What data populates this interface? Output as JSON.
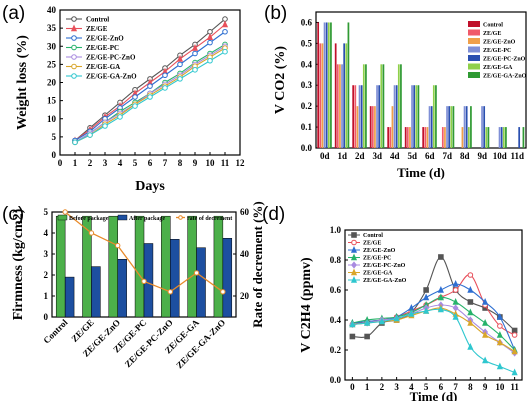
{
  "colors": {
    "control": "#555555",
    "ze_ge": "#e8505b",
    "ze_ge_zno": "#2e6fd1",
    "ze_ge_pc": "#27b36b",
    "ze_ge_pc_zno": "#a98be0",
    "ze_ge_ga": "#d9a62a",
    "ze_ge_ga_zno": "#2fc7cf",
    "b_control": "#c0102a",
    "b_ze_ge": "#f05a6a",
    "b_ze_ge_zno": "#f0a04a",
    "b_ze_ge_pc": "#7f8fd6",
    "b_ze_ge_pc_zno": "#2a4fb0",
    "b_ze_ge_ga": "#8fd04a",
    "b_ze_ge_ga_zno": "#2f9a33",
    "c_before": "#4cb04a",
    "c_after": "#1d4fa0",
    "c_rate": "#e88a2a"
  },
  "chart_data": [
    {
      "panel": "(a)",
      "type": "line",
      "xlabel": "Days",
      "ylabel": "Weight loss (%)",
      "xlim": [
        0,
        12
      ],
      "ylim": [
        0,
        40
      ],
      "xticks": [
        "0",
        "1",
        "2",
        "3",
        "4",
        "5",
        "6",
        "7",
        "8",
        "9",
        "10",
        "11",
        "12"
      ],
      "yticks": [
        "0",
        "5",
        "10",
        "15",
        "20",
        "25",
        "30",
        "35",
        "40"
      ],
      "x": [
        1,
        2,
        3,
        4,
        5,
        6,
        7,
        8,
        9,
        10,
        11
      ],
      "legend_position": "top-left",
      "series": [
        {
          "name": "Control",
          "color_key": "control",
          "marker": "circle",
          "values": [
            4,
            7.5,
            11,
            14.5,
            18,
            21,
            24,
            27.5,
            30.5,
            34,
            37.5
          ]
        },
        {
          "name": "ZE/GE",
          "color_key": "ze_ge",
          "marker": "triangle",
          "values": [
            4,
            7,
            10.5,
            13.5,
            17,
            20,
            23,
            26.5,
            29.5,
            32.5,
            36
          ]
        },
        {
          "name": "ZE/GE-ZnO",
          "color_key": "ze_ge_zno",
          "marker": "circle",
          "values": [
            4,
            6.5,
            10,
            13,
            16,
            19,
            22,
            25,
            28,
            31,
            34
          ]
        },
        {
          "name": "ZE/GE-PC",
          "color_key": "ze_ge_pc",
          "marker": "circle",
          "values": [
            3.5,
            6,
            9,
            12,
            14.5,
            17,
            20,
            22.5,
            25.5,
            28,
            30.5
          ]
        },
        {
          "name": "ZE/GE-PC-ZnO",
          "color_key": "ze_ge_pc_zno",
          "marker": "circle",
          "values": [
            3.5,
            6,
            9,
            11.5,
            14,
            17,
            19.5,
            22,
            25,
            27.5,
            30
          ]
        },
        {
          "name": "ZE/GE-GA",
          "color_key": "ze_ge_ga",
          "marker": "circle",
          "values": [
            3.5,
            5.5,
            8.5,
            11,
            14,
            16.5,
            19,
            21.5,
            24.5,
            27,
            29.5
          ]
        },
        {
          "name": "ZE/GE-GA-ZnO",
          "color_key": "ze_ge_ga_zno",
          "marker": "circle",
          "values": [
            3.5,
            5.5,
            8,
            10.5,
            13.5,
            16,
            18.5,
            21,
            23.5,
            26,
            28.5
          ]
        }
      ]
    },
    {
      "panel": "(b)",
      "type": "bar",
      "xlabel": "Time (d)",
      "ylabel": "V CO2 (%)",
      "ylim": [
        0,
        0.65
      ],
      "yticks": [
        "0.0",
        "0.1",
        "0.2",
        "0.3",
        "0.4",
        "0.5",
        "0.6"
      ],
      "categories": [
        "0d",
        "1d",
        "2d",
        "3d",
        "4d",
        "5d",
        "6d",
        "7d",
        "8d",
        "9d",
        "10d",
        "11d"
      ],
      "legend_position": "top-right",
      "series": [
        {
          "name": "Control",
          "color_key": "b_control",
          "values": [
            0.6,
            0.5,
            0.3,
            0.2,
            0.1,
            0.1,
            0.1,
            0,
            0,
            0,
            0,
            0
          ]
        },
        {
          "name": "ZE/GE",
          "color_key": "b_ze_ge",
          "values": [
            0.5,
            0.4,
            0.3,
            0.2,
            0.1,
            0.1,
            0.1,
            0.1,
            0,
            0,
            0,
            0
          ]
        },
        {
          "name": "ZE/GE-ZnO",
          "color_key": "b_ze_ge_zno",
          "values": [
            0.5,
            0.4,
            0.2,
            0.2,
            0.2,
            0.1,
            0.1,
            0.1,
            0.1,
            0,
            0,
            0
          ]
        },
        {
          "name": "ZE/GE-PC",
          "color_key": "b_ze_ge_pc",
          "values": [
            0.6,
            0.4,
            0.3,
            0.3,
            0.3,
            0.3,
            0.2,
            0.2,
            0.2,
            0.2,
            0.1,
            0
          ]
        },
        {
          "name": "ZE/GE-PC-ZnO",
          "color_key": "b_ze_ge_pc_zno",
          "values": [
            0.6,
            0.5,
            0.3,
            0.3,
            0.3,
            0.3,
            0.2,
            0.2,
            0.2,
            0.2,
            0.1,
            0.1
          ]
        },
        {
          "name": "ZE/GE-GA",
          "color_key": "b_ze_ge_ga",
          "values": [
            0.6,
            0.5,
            0.4,
            0.4,
            0.4,
            0.3,
            0.3,
            0.2,
            0.1,
            0.1,
            0.1,
            0
          ]
        },
        {
          "name": "ZE/GE-GA-ZnO",
          "color_key": "b_ze_ge_ga_zno",
          "values": [
            0.6,
            0.6,
            0.4,
            0.4,
            0.4,
            0.3,
            0.3,
            0.2,
            0.2,
            0.1,
            0.1,
            0.1
          ]
        }
      ]
    },
    {
      "panel": "(c)",
      "type": "bar",
      "ylabel": "Firmness (kg/cm2)",
      "ylabel_right": "Rate of decrement (%)",
      "ylim": [
        0,
        5
      ],
      "ylim_right": [
        10,
        60
      ],
      "yticks": [
        "0",
        "1",
        "2",
        "3",
        "4",
        "5"
      ],
      "yticks_right": [
        "20",
        "40",
        "60"
      ],
      "categories": [
        "Control",
        "ZE/GE",
        "ZE/GE-ZnO",
        "ZE/GE-PC",
        "ZE/GE-PC-ZnO",
        "ZE/GE-GA",
        "ZE/GE-GA-ZnO"
      ],
      "legend_position": "top",
      "series": [
        {
          "name": "Before package",
          "color_key": "c_before",
          "values": [
            4.8,
            4.8,
            4.8,
            4.8,
            4.8,
            4.8,
            4.8
          ]
        },
        {
          "name": "After package",
          "color_key": "c_after",
          "values": [
            1.9,
            2.4,
            2.75,
            3.5,
            3.7,
            3.3,
            3.75
          ]
        },
        {
          "name": "rate of decrement",
          "color_key": "c_rate",
          "axis": "right",
          "values": [
            60,
            50,
            44,
            27,
            22,
            31,
            22
          ]
        }
      ]
    },
    {
      "panel": "(d)",
      "type": "line",
      "xlabel": "Time (d)",
      "ylabel": "V C2H4 (ppmv)",
      "xlim": [
        -0.5,
        11.5
      ],
      "ylim": [
        0,
        1.0
      ],
      "xticks": [
        "0",
        "1",
        "2",
        "3",
        "4",
        "5",
        "6",
        "7",
        "8",
        "9",
        "10",
        "11"
      ],
      "yticks": [
        "0.0",
        "0.2",
        "0.4",
        "0.6",
        "0.8",
        "1.0"
      ],
      "x": [
        0,
        1,
        2,
        3,
        4,
        5,
        6,
        7,
        8,
        9,
        10,
        11
      ],
      "legend_position": "top-left",
      "series": [
        {
          "name": "Control",
          "color_key": "control",
          "marker": "square",
          "values": [
            0.29,
            0.29,
            0.38,
            0.4,
            0.45,
            0.6,
            0.82,
            0.6,
            0.52,
            0.48,
            0.42,
            0.33
          ]
        },
        {
          "name": "ZE/GE",
          "color_key": "ze_ge",
          "marker": "circle",
          "values": [
            0.37,
            0.39,
            0.4,
            0.42,
            0.46,
            0.5,
            0.55,
            0.6,
            0.7,
            0.5,
            0.36,
            0.3
          ]
        },
        {
          "name": "ZE/GE-ZnO",
          "color_key": "ze_ge_zno",
          "marker": "triangle",
          "values": [
            0.38,
            0.39,
            0.4,
            0.42,
            0.48,
            0.55,
            0.6,
            0.64,
            0.6,
            0.52,
            0.42,
            0.2
          ]
        },
        {
          "name": "ZE/GE-PC",
          "color_key": "ze_ge_pc",
          "marker": "triangle",
          "values": [
            0.38,
            0.4,
            0.41,
            0.42,
            0.45,
            0.5,
            0.55,
            0.52,
            0.45,
            0.38,
            0.3,
            0.2
          ]
        },
        {
          "name": "ZE/GE-PC-ZnO",
          "color_key": "ze_ge_pc_zno",
          "marker": "diamond",
          "values": [
            0.37,
            0.38,
            0.4,
            0.41,
            0.44,
            0.48,
            0.5,
            0.48,
            0.4,
            0.32,
            0.25,
            0.18
          ]
        },
        {
          "name": "ZE/GE-GA",
          "color_key": "ze_ge_ga",
          "marker": "triangle",
          "values": [
            0.37,
            0.38,
            0.39,
            0.4,
            0.43,
            0.46,
            0.48,
            0.44,
            0.38,
            0.3,
            0.25,
            0.19
          ]
        },
        {
          "name": "ZE/GE-GA-ZnO",
          "color_key": "ze_ge_ga_zno",
          "marker": "triangle",
          "values": [
            0.37,
            0.38,
            0.39,
            0.41,
            0.44,
            0.46,
            0.47,
            0.42,
            0.22,
            0.13,
            0.09,
            0.05
          ]
        }
      ]
    }
  ]
}
